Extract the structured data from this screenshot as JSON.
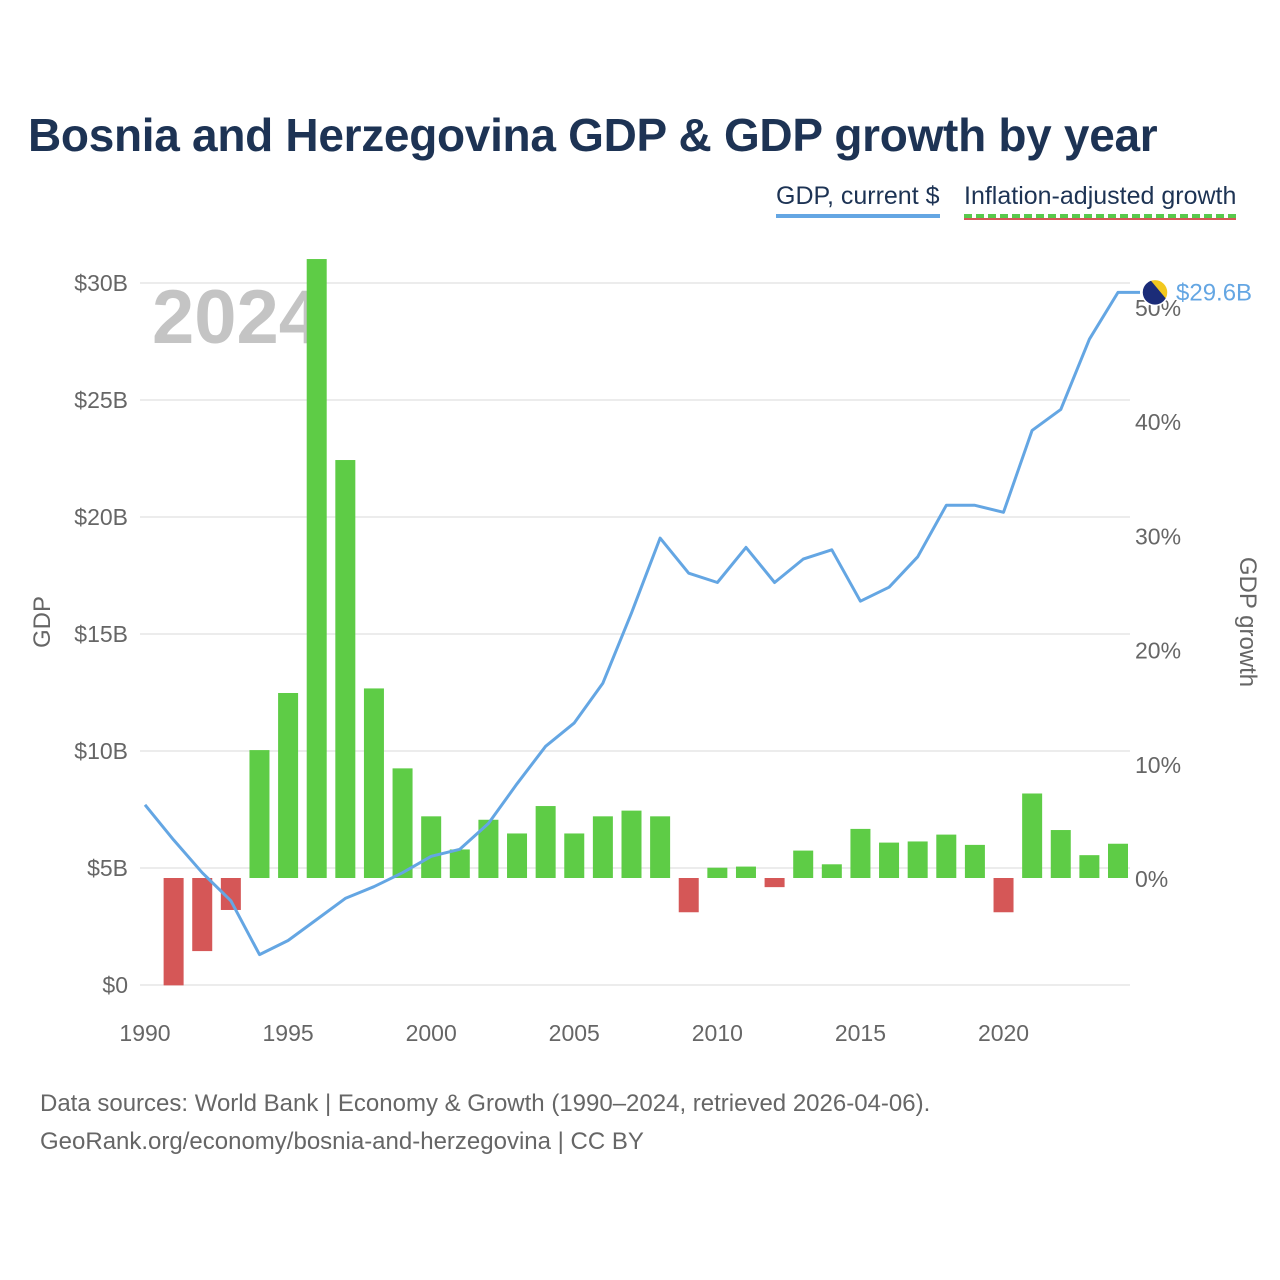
{
  "title": "Bosnia and Herzegovina GDP & GDP growth by year",
  "legend": {
    "gdp_label": "GDP, current $",
    "growth_label": "Inflation-adjusted growth"
  },
  "year_watermark": "2024",
  "end_label": "$29.6B",
  "footer": {
    "line1": "Data sources: World Bank | Economy & Growth (1990–2024, retrieved 2026-04-06).",
    "line2": "GeoRank.org/economy/bosnia-and-herzegovina | CC BY"
  },
  "colors": {
    "line": "#64a6e3",
    "positive": "#5ecc46",
    "negative": "#d55757",
    "title": "#1d3354",
    "axis_text": "#666666",
    "grid": "#e6e6e6",
    "watermark": "#c4c4c4"
  },
  "chart_data": {
    "type": "bar+line",
    "title": "Bosnia and Herzegovina GDP & GDP growth by year",
    "x_label": "",
    "y_left_label": "GDP",
    "y_right_label": "GDP growth",
    "x_ticks": [
      1990,
      1995,
      2000,
      2005,
      2010,
      2015,
      2020
    ],
    "x_tick_labels": [
      "1990",
      "1995",
      "2000",
      "2005",
      "2010",
      "2015",
      "2020"
    ],
    "x_range": [
      1990,
      2024
    ],
    "y_left_range": [
      0,
      30
    ],
    "y_left_ticks": [
      0,
      5,
      10,
      15,
      20,
      25,
      30
    ],
    "y_left_tick_labels": [
      "$0",
      "$5B",
      "$10B",
      "$15B",
      "$20B",
      "$25B",
      "$30B"
    ],
    "y_right_range": [
      -9.4,
      52
    ],
    "y_right_ticks": [
      0,
      10,
      20,
      30,
      40,
      50
    ],
    "y_right_tick_labels": [
      "0%",
      "10%",
      "20%",
      "30%",
      "40%",
      "50%"
    ],
    "series": [
      {
        "name": "GDP, current $",
        "type": "line",
        "unit": "billion USD",
        "x": [
          1990,
          1991,
          1992,
          1993,
          1994,
          1995,
          1996,
          1997,
          1998,
          1999,
          2000,
          2001,
          2002,
          2003,
          2004,
          2005,
          2006,
          2007,
          2008,
          2009,
          2010,
          2011,
          2012,
          2013,
          2014,
          2015,
          2016,
          2017,
          2018,
          2019,
          2020,
          2021,
          2022,
          2023,
          2024
        ],
        "values": [
          7.7,
          6.2,
          4.8,
          3.6,
          1.3,
          1.9,
          2.8,
          3.7,
          4.2,
          4.8,
          5.5,
          5.8,
          6.9,
          8.6,
          10.2,
          11.2,
          12.9,
          15.9,
          19.1,
          17.6,
          17.2,
          18.7,
          17.2,
          18.2,
          18.6,
          16.4,
          17.0,
          18.3,
          20.5,
          20.5,
          20.2,
          23.7,
          24.6,
          27.6,
          29.6
        ]
      },
      {
        "name": "Inflation-adjusted growth",
        "type": "bar",
        "unit": "percent",
        "x": [
          1991,
          1992,
          1993,
          1994,
          1995,
          1996,
          1997,
          1998,
          1999,
          2000,
          2001,
          2002,
          2003,
          2004,
          2005,
          2006,
          2007,
          2008,
          2009,
          2010,
          2011,
          2012,
          2013,
          2014,
          2015,
          2016,
          2017,
          2018,
          2019,
          2020,
          2021,
          2022,
          2023,
          2024
        ],
        "values": [
          -9.4,
          -6.4,
          -2.8,
          11.2,
          16.2,
          54.2,
          36.6,
          16.6,
          9.6,
          5.4,
          2.5,
          5.1,
          3.9,
          6.3,
          3.9,
          5.4,
          5.9,
          5.4,
          -3.0,
          0.9,
          1.0,
          -0.8,
          2.4,
          1.2,
          4.3,
          3.1,
          3.2,
          3.8,
          2.9,
          -3.0,
          7.4,
          4.2,
          2.0,
          3.0
        ]
      }
    ]
  }
}
